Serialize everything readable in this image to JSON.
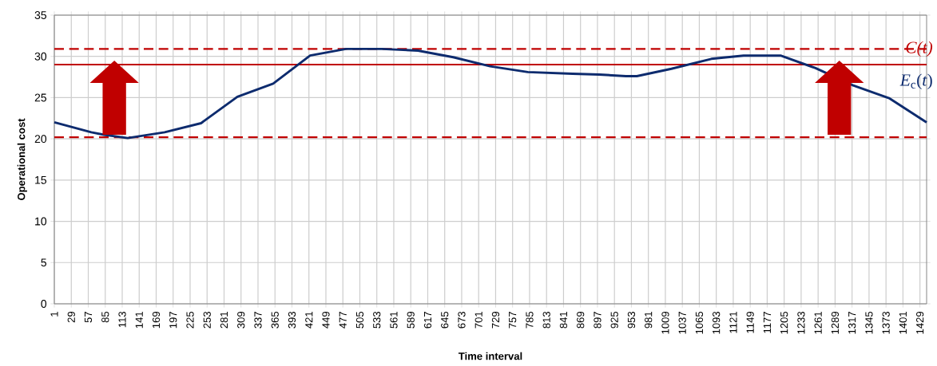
{
  "chart_data": {
    "type": "line",
    "xlabel": "Time interval",
    "ylabel": "Operational cost",
    "xlim": [
      1,
      1440
    ],
    "ylim": [
      0,
      35
    ],
    "xticks": [
      1,
      29,
      57,
      85,
      113,
      141,
      169,
      197,
      225,
      253,
      281,
      309,
      337,
      365,
      393,
      421,
      449,
      477,
      505,
      533,
      561,
      589,
      617,
      645,
      673,
      701,
      729,
      757,
      785,
      813,
      841,
      869,
      897,
      925,
      953,
      981,
      1009,
      1037,
      1065,
      1093,
      1121,
      1149,
      1177,
      1205,
      1233,
      1261,
      1289,
      1317,
      1345,
      1373,
      1401,
      1429
    ],
    "yticks": [
      0,
      5,
      10,
      15,
      20,
      25,
      30,
      35
    ],
    "grid": true,
    "series": [
      {
        "name": "*E*$_{c}$(*t*)",
        "color": "#0d2b6e",
        "x": [
          1,
          62,
          83,
          122,
          183,
          243,
          303,
          362,
          423,
          482,
          542,
          601,
          659,
          720,
          782,
          856,
          900,
          944,
          962,
          1019,
          1085,
          1138,
          1199,
          1256,
          1318,
          1379,
          1440
        ],
        "values": [
          22.0,
          20.8,
          20.5,
          20.1,
          20.8,
          21.9,
          25.1,
          26.7,
          30.1,
          30.9,
          30.9,
          30.7,
          29.9,
          28.8,
          28.1,
          27.9,
          27.8,
          27.6,
          27.6,
          28.5,
          29.7,
          30.1,
          30.1,
          28.6,
          26.5,
          24.9,
          22.0
        ]
      }
    ],
    "ref_lines": [
      {
        "axis": "y",
        "value": 30.9,
        "label": "*C*(*t*)",
        "color": "#c00000",
        "line_style": "dashed"
      },
      {
        "axis": "y",
        "value": 29,
        "color": "#c00000",
        "line_style": "solid"
      },
      {
        "axis": "y",
        "value": 20.2,
        "color": "#c00000",
        "line_style": "dashed"
      }
    ]
  }
}
